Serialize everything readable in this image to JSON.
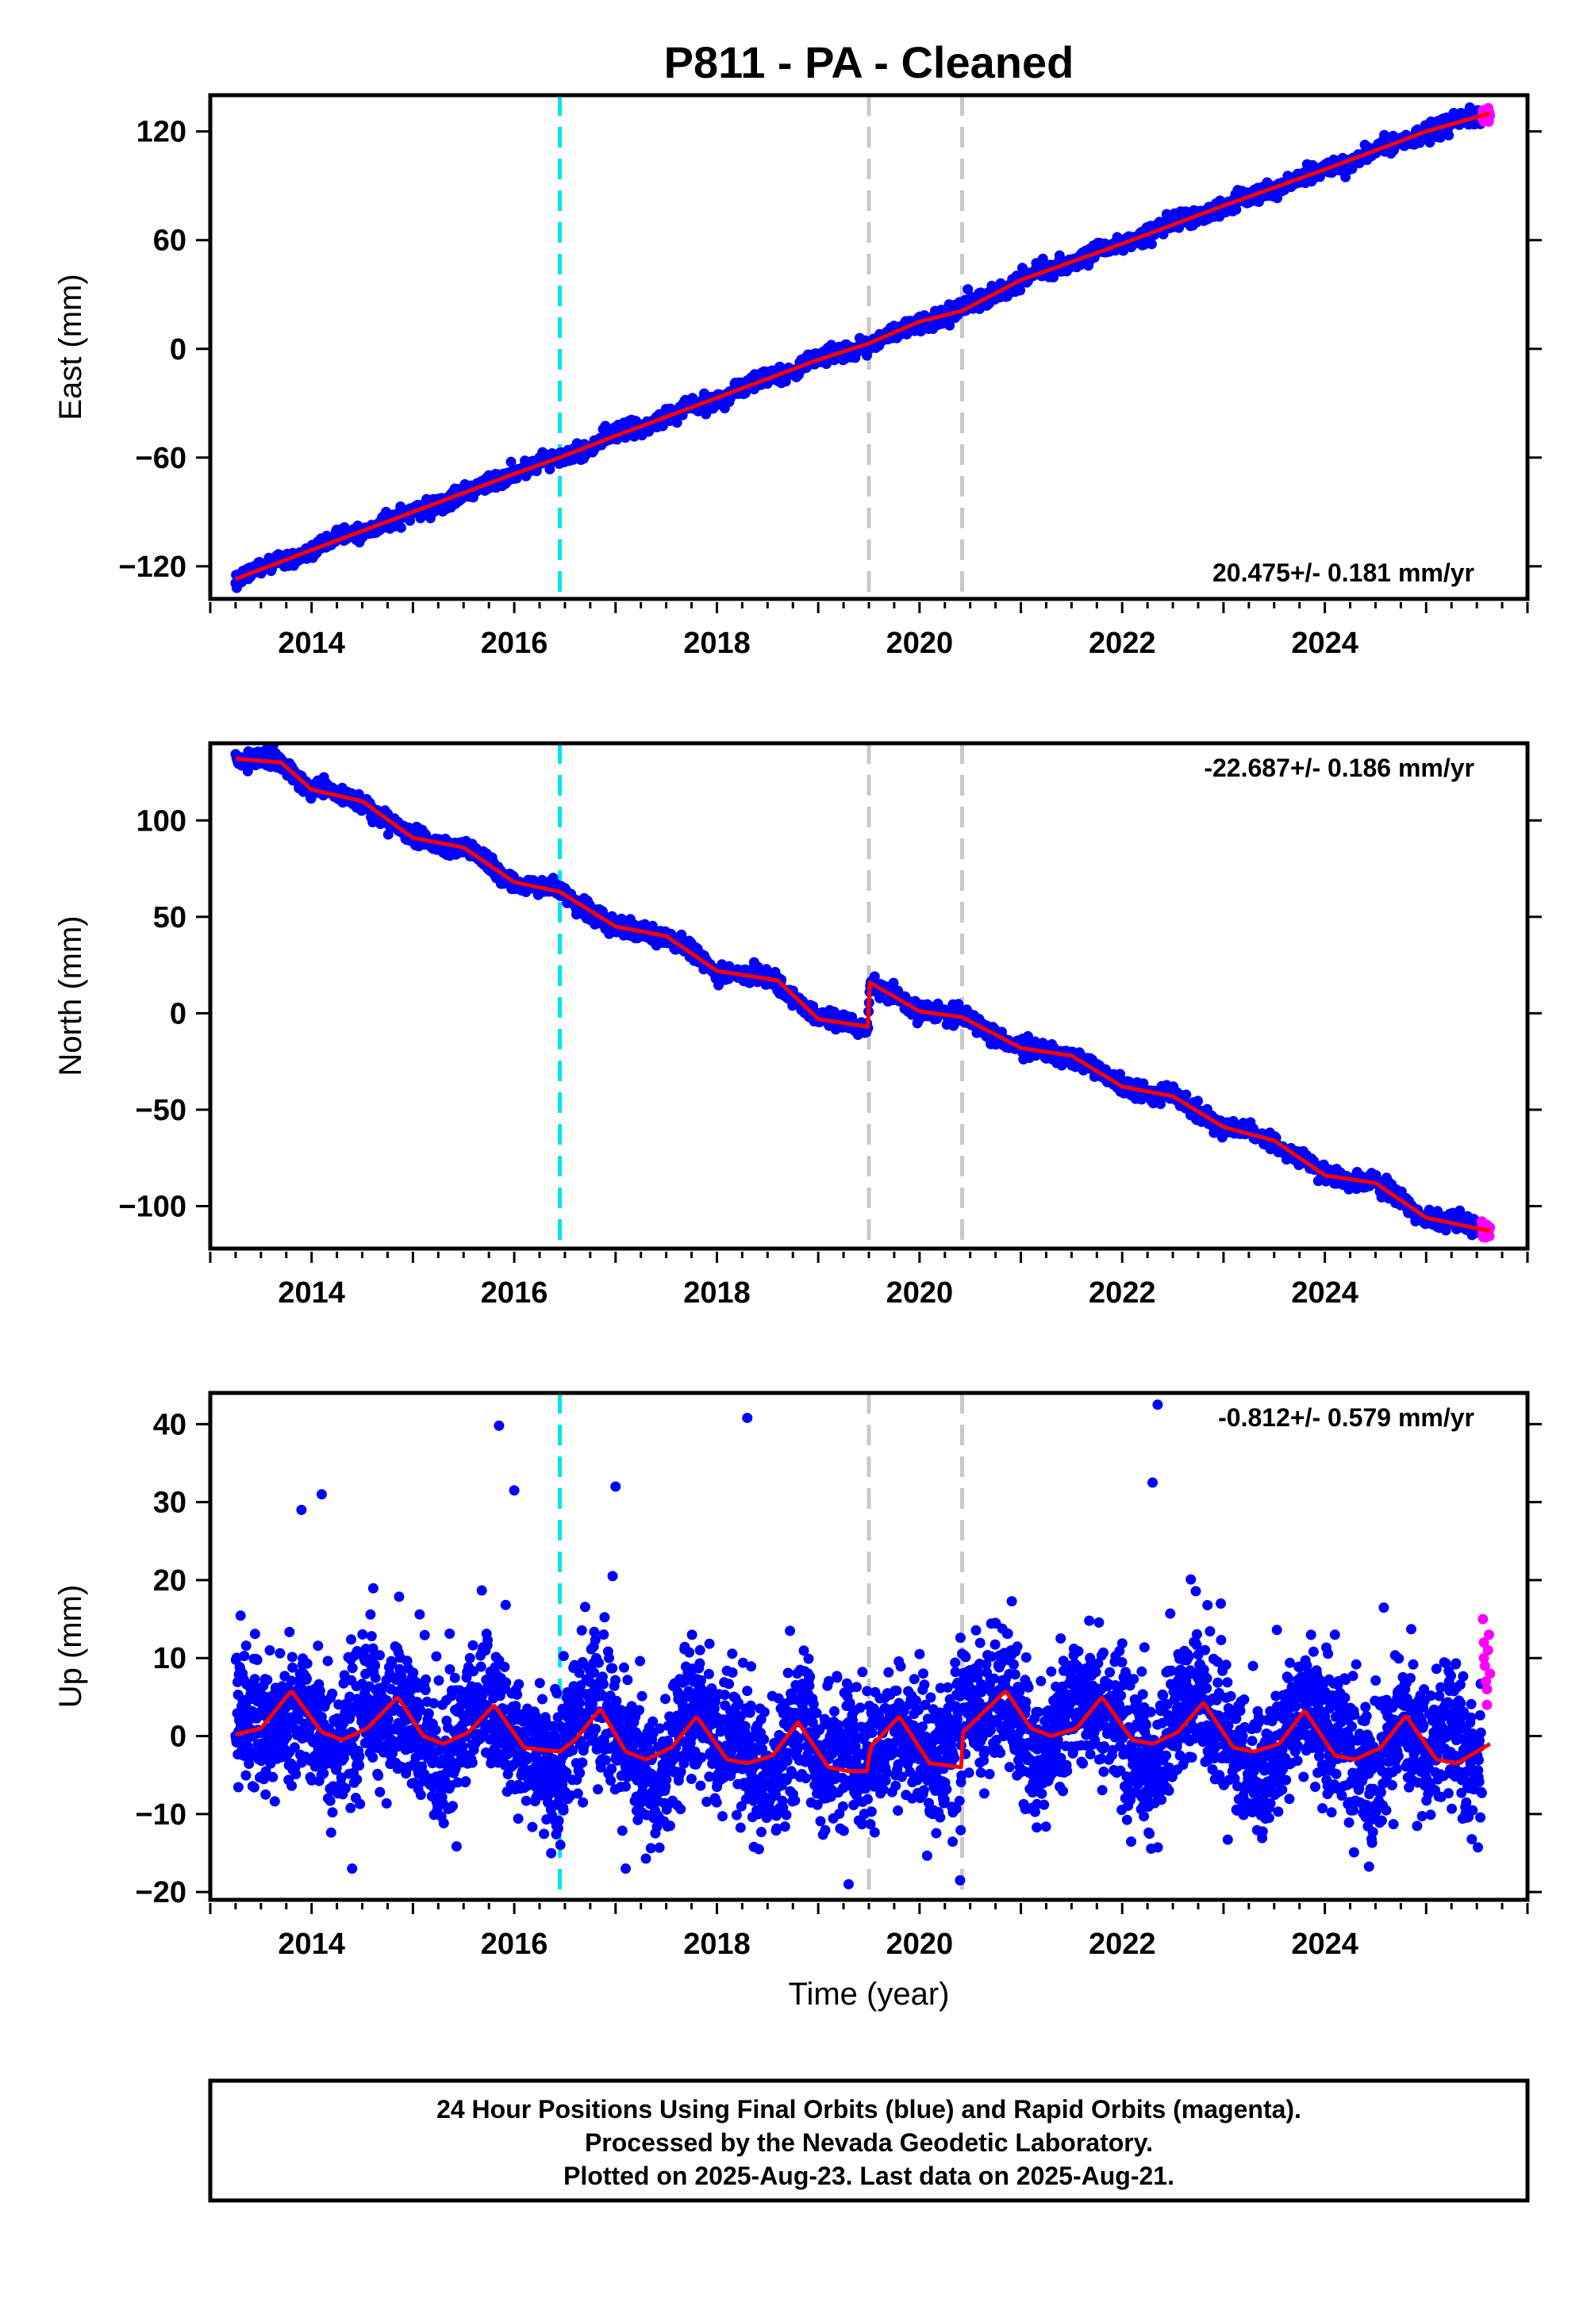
{
  "title": "P811  - PA - Cleaned",
  "footer": {
    "line1": "24 Hour Positions Using Final Orbits (blue) and Rapid Orbits (magenta).",
    "line2": "Processed by the Nevada Geodetic Laboratory.",
    "line3": "Plotted on 2025-Aug-23. Last data on 2025-Aug-21."
  },
  "colors": {
    "final_orbit_points": "#0000ff",
    "rapid_orbit_points": "#ff00ff",
    "model_fit": "#ff0000",
    "antenna_change_line": "#00e5ee",
    "equipment_change_line": "#c8c8c8",
    "frame": "#000000"
  },
  "chart_data": [
    {
      "type": "scatter",
      "component": "east",
      "title": "",
      "xlabel": "",
      "ylabel": "East (mm)",
      "xlim": [
        2013.0,
        2026.0
      ],
      "ylim": [
        -138,
        140
      ],
      "xticks": [
        2014,
        2016,
        2018,
        2020,
        2022,
        2024
      ],
      "yticks": [
        -120,
        -60,
        0,
        60,
        120
      ],
      "ytick_labels": [
        "−120",
        "−60",
        "0",
        "60",
        "120"
      ],
      "rate_text": "20.475+/- 0.181 mm/yr",
      "rate_position": "bottom-right",
      "data_start": 2013.25,
      "data_end": 2025.63,
      "rapid_start": 2025.55,
      "vertical_lines": [
        {
          "x": 2016.45,
          "kind": "antenna_change"
        },
        {
          "x": 2019.5,
          "kind": "equipment_change"
        },
        {
          "x": 2020.42,
          "kind": "equipment_change"
        }
      ],
      "model_curve": {
        "x": [
          2013.25,
          2014.0,
          2015.0,
          2016.0,
          2016.45,
          2017.0,
          2018.0,
          2019.0,
          2019.5,
          2020.0,
          2020.42,
          2021.0,
          2022.0,
          2023.0,
          2024.0,
          2025.0,
          2025.63
        ],
        "y": [
          -127,
          -111,
          -90,
          -69,
          -60,
          -48,
          -27,
          -6,
          3,
          15,
          21,
          38,
          58,
          79,
          99,
          120,
          130
        ]
      }
    },
    {
      "type": "scatter",
      "component": "north",
      "title": "",
      "xlabel": "",
      "ylabel": "North (mm)",
      "xlim": [
        2013.0,
        2026.0
      ],
      "ylim": [
        -122,
        140
      ],
      "xticks": [
        2014,
        2016,
        2018,
        2020,
        2022,
        2024
      ],
      "yticks": [
        -100,
        -50,
        0,
        50,
        100
      ],
      "ytick_labels": [
        "−100",
        "−50",
        "0",
        "50",
        "100"
      ],
      "rate_text": "-22.687+/- 0.186 mm/yr",
      "rate_position": "top-right",
      "data_start": 2013.25,
      "data_end": 2025.63,
      "rapid_start": 2025.55,
      "vertical_lines": [
        {
          "x": 2016.45,
          "kind": "antenna_change"
        },
        {
          "x": 2019.5,
          "kind": "equipment_change"
        },
        {
          "x": 2020.42,
          "kind": "equipment_change"
        }
      ],
      "model_curve": {
        "x": [
          2013.25,
          2013.7,
          2014.0,
          2014.5,
          2015.0,
          2015.5,
          2016.0,
          2016.45,
          2017.0,
          2017.5,
          2018.0,
          2018.6,
          2019.0,
          2019.49,
          2019.51,
          2020.0,
          2020.42,
          2021.0,
          2021.5,
          2022.0,
          2022.5,
          2023.0,
          2023.5,
          2024.0,
          2024.5,
          2025.0,
          2025.63
        ],
        "y": [
          132,
          130,
          116,
          110,
          91,
          86,
          68,
          63,
          45,
          40,
          22,
          17,
          -3,
          -7,
          16,
          1,
          -2,
          -18,
          -22,
          -38,
          -43,
          -59,
          -66,
          -84,
          -88,
          -106,
          -113
        ]
      }
    },
    {
      "type": "scatter",
      "component": "up",
      "title": "",
      "xlabel": "Time (year)",
      "ylabel": "Up (mm)",
      "xlim": [
        2013.0,
        2026.0
      ],
      "ylim": [
        -21,
        44
      ],
      "xticks": [
        2014,
        2016,
        2018,
        2020,
        2022,
        2024
      ],
      "yticks": [
        -20,
        -10,
        0,
        10,
        20,
        30,
        40
      ],
      "ytick_labels": [
        "−20",
        "−10",
        "0",
        "10",
        "20",
        "30",
        "40"
      ],
      "rate_text": "-0.812+/- 0.579 mm/yr",
      "rate_position": "top-right",
      "data_start": 2013.25,
      "data_end": 2025.63,
      "rapid_start": 2025.55,
      "vertical_lines": [
        {
          "x": 2016.45,
          "kind": "antenna_change"
        },
        {
          "x": 2019.5,
          "kind": "equipment_change"
        },
        {
          "x": 2020.42,
          "kind": "equipment_change"
        }
      ],
      "model_curve": {
        "x": [
          2013.25,
          2013.5,
          2013.8,
          2014.1,
          2014.3,
          2014.55,
          2014.85,
          2015.1,
          2015.3,
          2015.55,
          2015.8,
          2016.1,
          2016.45,
          2016.6,
          2016.85,
          2017.1,
          2017.3,
          2017.55,
          2017.8,
          2018.1,
          2018.3,
          2018.55,
          2018.8,
          2019.1,
          2019.3,
          2019.49,
          2019.51,
          2019.8,
          2020.1,
          2020.41,
          2020.43,
          2020.85,
          2021.1,
          2021.3,
          2021.55,
          2021.8,
          2022.1,
          2022.3,
          2022.55,
          2022.8,
          2023.1,
          2023.3,
          2023.55,
          2023.8,
          2024.1,
          2024.3,
          2024.55,
          2024.8,
          2025.1,
          2025.3,
          2025.63
        ],
        "y": [
          0.2,
          1.0,
          5.8,
          0.5,
          -0.5,
          1.0,
          5.0,
          0.0,
          -1.0,
          0.5,
          4.0,
          -1.5,
          -2.0,
          -0.5,
          3.5,
          -2.0,
          -3.0,
          -1.5,
          2.5,
          -3.0,
          -3.5,
          -2.5,
          1.8,
          -4.0,
          -4.5,
          -4.5,
          -1.5,
          2.5,
          -3.5,
          -4.0,
          0.5,
          5.8,
          1.0,
          0.0,
          1.0,
          5.0,
          -0.5,
          -1.0,
          0.5,
          4.3,
          -1.5,
          -2.0,
          -1.0,
          3.3,
          -2.5,
          -3.0,
          -1.5,
          2.6,
          -3.0,
          -3.5,
          -1.0
        ]
      },
      "outliers": {
        "x": [
          2015.85,
          2016.0,
          2018.3,
          2022.35,
          2013.9,
          2014.1,
          2017.0,
          2022.3,
          2019.3,
          2020.4,
          2014.4,
          2017.1
        ],
        "y": [
          39.8,
          31.5,
          40.8,
          42.5,
          29.0,
          31.0,
          32.0,
          32.5,
          -19.0,
          -18.5,
          -17.0,
          -17.0
        ]
      },
      "rapid_points": {
        "x": [
          2025.56,
          2025.57,
          2025.58,
          2025.59,
          2025.6,
          2025.61,
          2025.62,
          2025.63,
          2025.57,
          2025.6
        ],
        "y": [
          15,
          12,
          9,
          7,
          4,
          11,
          13,
          8,
          10,
          6
        ]
      }
    }
  ]
}
